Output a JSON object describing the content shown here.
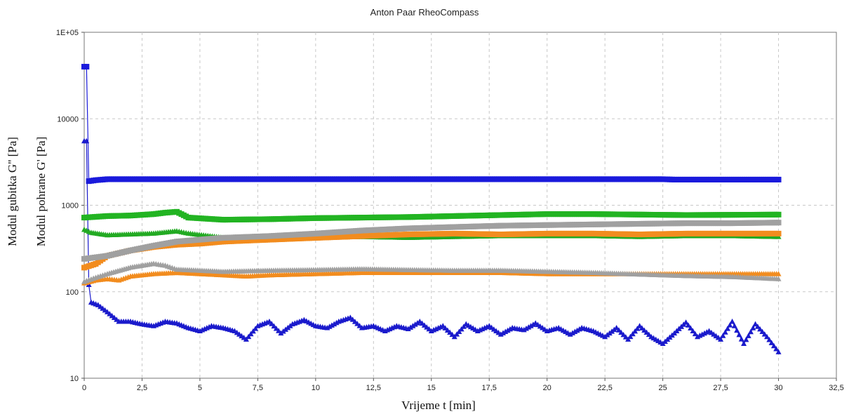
{
  "chart_data": {
    "type": "line",
    "title": "Anton Paar RheoCompass",
    "xlabel": "Vrijeme t [min]",
    "ylabel_outer": "Modul gubitka G'' [Pa]",
    "ylabel_inner": "Modul pohrane G' [Pa]",
    "y_scale": "log",
    "xlim": [
      0,
      32.5
    ],
    "ylim": [
      10,
      100000
    ],
    "x_ticks": [
      "0",
      "2,5",
      "5",
      "7,5",
      "10",
      "12,5",
      "15",
      "17,5",
      "20",
      "22,5",
      "25",
      "27,5",
      "30",
      "32,5"
    ],
    "y_ticks": [
      "10",
      "100",
      "1000",
      "10000",
      "1E+05"
    ],
    "grid": true,
    "series": [
      {
        "color": "#1a1adc",
        "marker": "square",
        "points": [
          [
            0,
            40000
          ],
          [
            0.1,
            40000
          ],
          [
            0.2,
            1900
          ],
          [
            0.5,
            1950
          ],
          [
            1,
            2000
          ],
          [
            2,
            2000
          ],
          [
            5,
            2000
          ],
          [
            10,
            2000
          ],
          [
            15,
            2000
          ],
          [
            20,
            2000
          ],
          [
            25,
            2000
          ],
          [
            25.5,
            1980
          ],
          [
            30,
            1980
          ]
        ]
      },
      {
        "color": "#1a1acc",
        "marker": "triangle",
        "points": [
          [
            0,
            5500
          ],
          [
            0.1,
            5500
          ],
          [
            0.2,
            120
          ],
          [
            0.3,
            75
          ],
          [
            0.6,
            70
          ],
          [
            1,
            58
          ],
          [
            1.5,
            45
          ],
          [
            2,
            45
          ],
          [
            2.5,
            42
          ],
          [
            3,
            40
          ],
          [
            3.5,
            45
          ],
          [
            4,
            43
          ],
          [
            4.5,
            38
          ],
          [
            5,
            35
          ],
          [
            5.5,
            40
          ],
          [
            6,
            38
          ],
          [
            6.5,
            35
          ],
          [
            7,
            28
          ],
          [
            7.5,
            40
          ],
          [
            8,
            45
          ],
          [
            8.5,
            33
          ],
          [
            9,
            42
          ],
          [
            9.5,
            47
          ],
          [
            10,
            40
          ],
          [
            10.5,
            38
          ],
          [
            11,
            45
          ],
          [
            11.5,
            50
          ],
          [
            12,
            38
          ],
          [
            12.5,
            40
          ],
          [
            13,
            35
          ],
          [
            13.5,
            40
          ],
          [
            14,
            37
          ],
          [
            14.5,
            45
          ],
          [
            15,
            35
          ],
          [
            15.5,
            40
          ],
          [
            16,
            30
          ],
          [
            16.5,
            42
          ],
          [
            17,
            35
          ],
          [
            17.5,
            40
          ],
          [
            18,
            32
          ],
          [
            18.5,
            38
          ],
          [
            19,
            36
          ],
          [
            19.5,
            43
          ],
          [
            20,
            35
          ],
          [
            20.5,
            38
          ],
          [
            21,
            32
          ],
          [
            21.5,
            38
          ],
          [
            22,
            35
          ],
          [
            22.5,
            30
          ],
          [
            23,
            38
          ],
          [
            23.5,
            28
          ],
          [
            24,
            40
          ],
          [
            24.5,
            30
          ],
          [
            25,
            25
          ],
          [
            25.5,
            33
          ],
          [
            26,
            44
          ],
          [
            26.5,
            30
          ],
          [
            27,
            35
          ],
          [
            27.5,
            28
          ],
          [
            28,
            45
          ],
          [
            28.5,
            25
          ],
          [
            29,
            42
          ],
          [
            29.5,
            30
          ],
          [
            30,
            20
          ]
        ]
      },
      {
        "color": "#22b422",
        "marker": "square",
        "points": [
          [
            0,
            720
          ],
          [
            1,
            750
          ],
          [
            2,
            760
          ],
          [
            3,
            790
          ],
          [
            3.5,
            820
          ],
          [
            4,
            840
          ],
          [
            4.5,
            720
          ],
          [
            6,
            680
          ],
          [
            8,
            690
          ],
          [
            10,
            710
          ],
          [
            12,
            720
          ],
          [
            14,
            730
          ],
          [
            16,
            750
          ],
          [
            18,
            770
          ],
          [
            20,
            790
          ],
          [
            22,
            790
          ],
          [
            24,
            780
          ],
          [
            26,
            770
          ],
          [
            28,
            775
          ],
          [
            30,
            780
          ]
        ]
      },
      {
        "color": "#22aa22",
        "marker": "triangle",
        "points": [
          [
            0,
            520
          ],
          [
            0.3,
            480
          ],
          [
            1,
            450
          ],
          [
            2,
            460
          ],
          [
            3,
            470
          ],
          [
            4,
            500
          ],
          [
            4.5,
            470
          ],
          [
            6,
            420
          ],
          [
            8,
            410
          ],
          [
            10,
            420
          ],
          [
            12,
            430
          ],
          [
            14,
            420
          ],
          [
            16,
            430
          ],
          [
            18,
            440
          ],
          [
            20,
            440
          ],
          [
            22,
            440
          ],
          [
            24,
            430
          ],
          [
            26,
            440
          ],
          [
            28,
            440
          ],
          [
            30,
            430
          ]
        ]
      },
      {
        "color": "#f28c1e",
        "marker": "square",
        "points": [
          [
            0,
            190
          ],
          [
            0.5,
            210
          ],
          [
            1,
            260
          ],
          [
            2,
            300
          ],
          [
            3,
            330
          ],
          [
            4,
            350
          ],
          [
            5,
            360
          ],
          [
            6,
            380
          ],
          [
            7,
            390
          ],
          [
            8,
            400
          ],
          [
            10,
            420
          ],
          [
            12,
            440
          ],
          [
            14,
            460
          ],
          [
            16,
            470
          ],
          [
            18,
            460
          ],
          [
            20,
            470
          ],
          [
            22,
            470
          ],
          [
            24,
            460
          ],
          [
            26,
            470
          ],
          [
            28,
            470
          ],
          [
            30,
            470
          ]
        ]
      },
      {
        "color": "#f28c1e",
        "marker": "triangle",
        "points": [
          [
            0,
            125
          ],
          [
            0.5,
            135
          ],
          [
            1,
            140
          ],
          [
            1.5,
            135
          ],
          [
            2,
            150
          ],
          [
            3,
            160
          ],
          [
            4,
            165
          ],
          [
            5,
            160
          ],
          [
            6,
            155
          ],
          [
            7,
            150
          ],
          [
            8,
            155
          ],
          [
            10,
            160
          ],
          [
            12,
            165
          ],
          [
            14,
            165
          ],
          [
            16,
            165
          ],
          [
            18,
            165
          ],
          [
            20,
            160
          ],
          [
            22,
            160
          ],
          [
            24,
            160
          ],
          [
            26,
            160
          ],
          [
            28,
            160
          ],
          [
            30,
            160
          ]
        ]
      },
      {
        "color": "#a0a0a0",
        "marker": "square",
        "points": [
          [
            0,
            240
          ],
          [
            1,
            260
          ],
          [
            2,
            300
          ],
          [
            3,
            340
          ],
          [
            4,
            380
          ],
          [
            5,
            400
          ],
          [
            6,
            420
          ],
          [
            8,
            440
          ],
          [
            10,
            470
          ],
          [
            12,
            510
          ],
          [
            14,
            540
          ],
          [
            16,
            560
          ],
          [
            18,
            580
          ],
          [
            20,
            590
          ],
          [
            22,
            600
          ],
          [
            24,
            610
          ],
          [
            26,
            620
          ],
          [
            28,
            620
          ],
          [
            30,
            630
          ]
        ]
      },
      {
        "color": "#a0a0a0",
        "marker": "triangle",
        "points": [
          [
            0,
            130
          ],
          [
            0.5,
            145
          ],
          [
            1,
            160
          ],
          [
            2,
            190
          ],
          [
            3,
            210
          ],
          [
            3.5,
            200
          ],
          [
            4,
            180
          ],
          [
            5,
            175
          ],
          [
            6,
            170
          ],
          [
            8,
            175
          ],
          [
            10,
            178
          ],
          [
            12,
            182
          ],
          [
            14,
            178
          ],
          [
            16,
            175
          ],
          [
            18,
            175
          ],
          [
            20,
            170
          ],
          [
            22,
            165
          ],
          [
            24,
            158
          ],
          [
            26,
            152
          ],
          [
            28,
            148
          ],
          [
            30,
            140
          ]
        ]
      }
    ]
  }
}
